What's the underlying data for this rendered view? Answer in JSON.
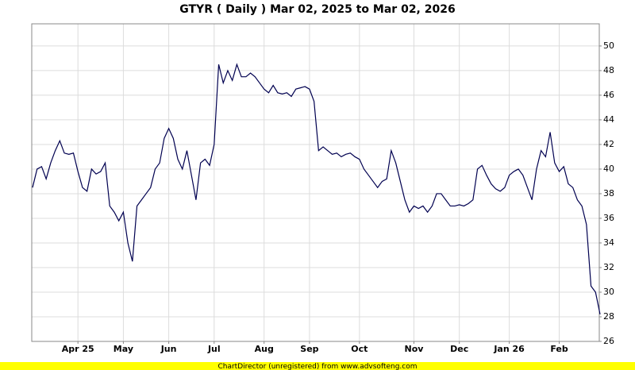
{
  "chart_data": {
    "type": "line",
    "title": "GTYR ( Daily ) Mar 02, 2025 to Mar 02, 2026",
    "categories": [
      null,
      null,
      null,
      null,
      null,
      null,
      null,
      null,
      null,
      null,
      "Apr 25",
      null,
      null,
      null,
      null,
      null,
      null,
      null,
      null,
      null,
      "May",
      null,
      null,
      null,
      null,
      null,
      null,
      null,
      null,
      null,
      "Jun",
      null,
      null,
      null,
      null,
      null,
      null,
      null,
      null,
      null,
      "Jul",
      null,
      null,
      null,
      null,
      null,
      null,
      null,
      null,
      null,
      null,
      "Aug",
      null,
      null,
      null,
      null,
      null,
      null,
      null,
      null,
      null,
      "Sep",
      null,
      null,
      null,
      null,
      null,
      null,
      null,
      null,
      null,
      null,
      "Oct",
      null,
      null,
      null,
      null,
      null,
      null,
      null,
      null,
      null,
      null,
      null,
      "Nov",
      null,
      null,
      null,
      null,
      null,
      null,
      null,
      null,
      null,
      "Dec",
      null,
      null,
      null,
      null,
      null,
      null,
      null,
      null,
      null,
      null,
      "Jan 26",
      null,
      null,
      null,
      null,
      null,
      null,
      null,
      null,
      null,
      null,
      "Feb",
      null,
      null,
      null,
      null,
      null,
      null,
      null,
      null,
      null
    ],
    "values": [
      38.5,
      40,
      40.2,
      39.2,
      40.5,
      41.5,
      42.3,
      41.3,
      41.2,
      41.3,
      39.8,
      38.5,
      38.2,
      40,
      39.6,
      39.8,
      40.5,
      37,
      36.5,
      35.8,
      36.5,
      34,
      32.5,
      37,
      37.5,
      38,
      38.5,
      40,
      40.5,
      42.5,
      43.3,
      42.5,
      40.8,
      40,
      41.5,
      39.5,
      37.5,
      40.5,
      40.8,
      40.3,
      42,
      48.5,
      47,
      48,
      47.2,
      48.5,
      47.5,
      47.5,
      47.8,
      47.5,
      47,
      46.5,
      46.2,
      46.8,
      46.2,
      46.1,
      46.2,
      45.9,
      46.5,
      46.6,
      46.7,
      46.5,
      45.5,
      41.5,
      41.8,
      41.5,
      41.2,
      41.3,
      41,
      41.2,
      41.3,
      41,
      40.8,
      40,
      39.5,
      39,
      38.5,
      39,
      39.2,
      41.5,
      40.5,
      39,
      37.5,
      36.5,
      37,
      36.8,
      37,
      36.5,
      37,
      38,
      38,
      37.5,
      37,
      37,
      37.1,
      37,
      37.2,
      37.5,
      40,
      40.3,
      39.5,
      38.8,
      38.4,
      38.2,
      38.5,
      39.5,
      39.8,
      40,
      39.5,
      38.5,
      37.5,
      40,
      41.5,
      41,
      43,
      40.5,
      39.8,
      40.2,
      38.8,
      38.5,
      37.5,
      37,
      35.5,
      30.5,
      30,
      28.2
    ],
    "color": "#000050",
    "ylim": [
      26,
      51.8
    ],
    "yticks": [
      26,
      28,
      30,
      32,
      34,
      36,
      38,
      40,
      42,
      44,
      46,
      48,
      50
    ],
    "grid": true
  },
  "footer": "ChartDirector (unregistered) from www.advsofteng.com"
}
